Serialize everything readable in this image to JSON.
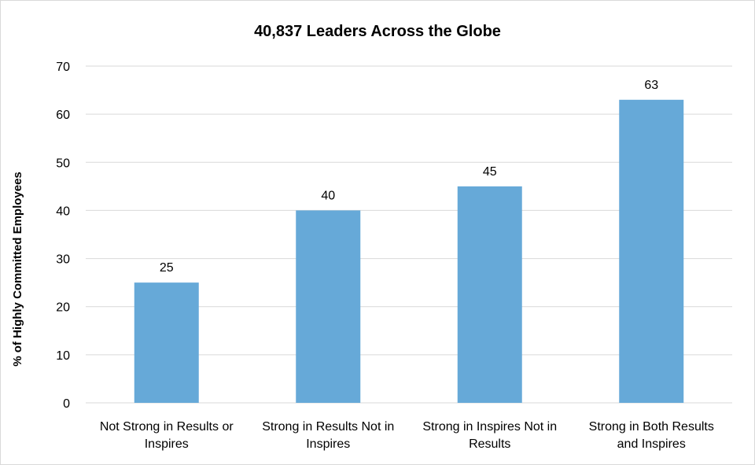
{
  "chart_data": {
    "type": "bar",
    "title": "40,837 Leaders Across the Globe",
    "xlabel": "",
    "ylabel": "% of Highly Committed Employees",
    "categories": [
      [
        "Not Strong in Results or",
        "Inspires"
      ],
      [
        "Strong in Results Not in",
        "Inspires"
      ],
      [
        "Strong in Inspires Not in",
        "Results"
      ],
      [
        "Strong in Both Results",
        "and Inspires"
      ]
    ],
    "values": [
      25,
      40,
      45,
      63
    ],
    "data_labels": [
      "25",
      "40",
      "45",
      "63"
    ],
    "ylim": [
      0,
      70
    ],
    "yticks": [
      0,
      10,
      20,
      30,
      40,
      50,
      60,
      70
    ],
    "grid": true,
    "legend": "none",
    "bar_color": "#66a9d8"
  }
}
